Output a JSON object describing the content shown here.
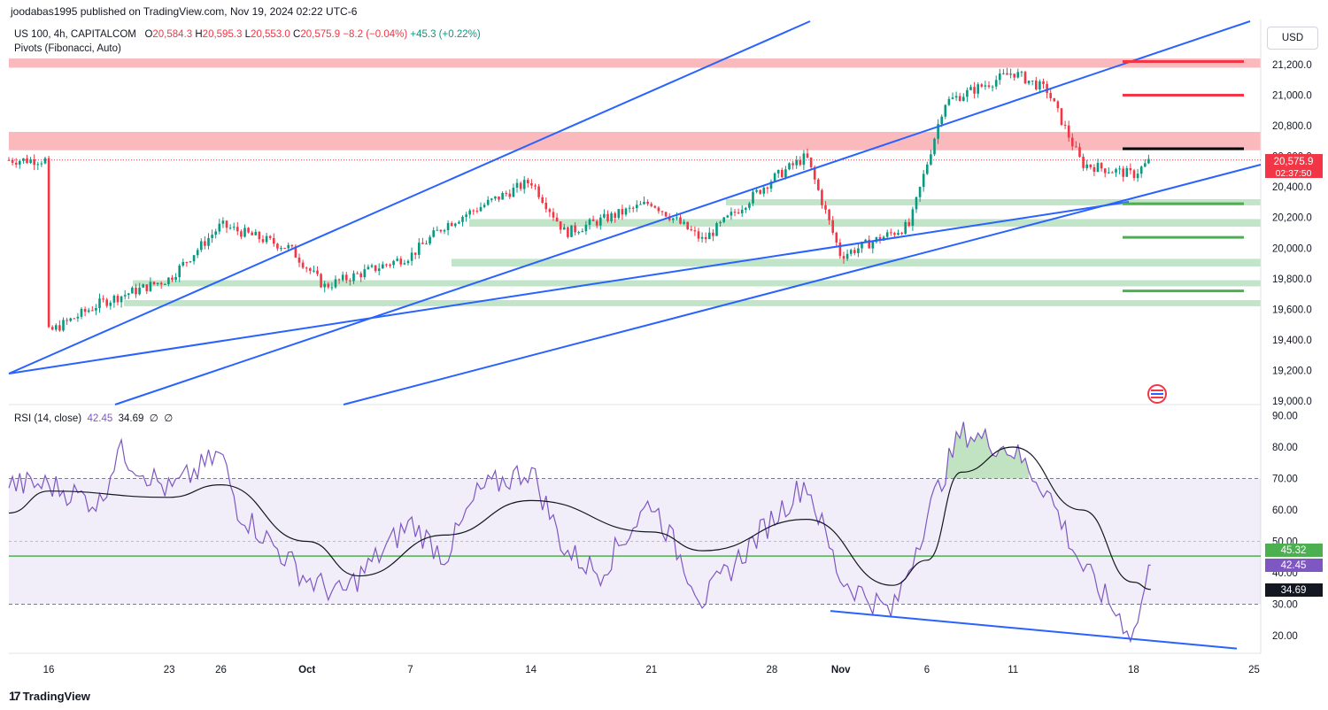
{
  "header": {
    "published": "joodabas1995 published on TradingView.com, Nov 19, 2024 02:22 UTC-6",
    "symbol": "US 100, 4h, CAPITALCOM",
    "open_label": "O",
    "open": "20,584.3",
    "high_label": "H",
    "high": "20,595.3",
    "low_label": "L",
    "low": "20,553.0",
    "close_label": "C",
    "close": "20,575.9",
    "change": "−8.2 (−0.04%)",
    "change2": "+45.3 (+0.22%)",
    "indicator": "Pivots (Fibonacci, Auto)",
    "currency": "USD"
  },
  "rsi_legend": {
    "name": "RSI (14, close)",
    "rsi": "42.45",
    "ma": "34.69",
    "e1": "∅",
    "e2": "∅"
  },
  "badges": {
    "price": "20,575.9",
    "countdown": "02:37:50",
    "rsi_green": "45.32",
    "rsi_purple": "42.45",
    "rsi_black": "34.69"
  },
  "footer": {
    "brand": "TradingView",
    "brand_mark": "17"
  },
  "colors": {
    "up": "#089981",
    "down": "#f23645",
    "trend": "#2962ff",
    "rsi": "#7e57c2",
    "resistance": "#f7a7ad",
    "support": "#b7dfbe"
  },
  "chart_data": [
    {
      "type": "candlestick",
      "title": "US 100, 4h, CAPITALCOM",
      "ylim": [
        19000,
        21400
      ],
      "y_ticks": [
        "19,000.0",
        "19,200.0",
        "19,400.0",
        "19,600.0",
        "19,800.0",
        "20,000.0",
        "20,200.0",
        "20,400.0",
        "20,600.0",
        "20,800.0",
        "21,000.0",
        "21,200.0"
      ],
      "x_ticks": [
        "16",
        "23",
        "26",
        "Oct",
        "7",
        "14",
        "21",
        "28",
        "Nov",
        "6",
        "11",
        "18",
        "25"
      ],
      "last_price": 20575.9,
      "key_points": [
        {
          "date": "Sep 16",
          "close": 19450
        },
        {
          "date": "Sep 19",
          "close": 19640
        },
        {
          "date": "Sep 23",
          "close": 19800
        },
        {
          "date": "Sep 26",
          "close": 20150
        },
        {
          "date": "Sep 30",
          "close": 20000
        },
        {
          "date": "Oct 2",
          "close": 19750
        },
        {
          "date": "Oct 7",
          "close": 19950
        },
        {
          "date": "Oct 9",
          "close": 20150
        },
        {
          "date": "Oct 14",
          "close": 20440
        },
        {
          "date": "Oct 16",
          "close": 20100
        },
        {
          "date": "Oct 21",
          "close": 20300
        },
        {
          "date": "Oct 24",
          "close": 20050
        },
        {
          "date": "Oct 28",
          "close": 20450
        },
        {
          "date": "Oct 30",
          "close": 20600
        },
        {
          "date": "Nov 1",
          "close": 19950
        },
        {
          "date": "Nov 5",
          "close": 20150
        },
        {
          "date": "Nov 7",
          "close": 20950
        },
        {
          "date": "Nov 11",
          "close": 21150
        },
        {
          "date": "Nov 13",
          "close": 21030
        },
        {
          "date": "Nov 15",
          "close": 20550
        },
        {
          "date": "Nov 18",
          "close": 20480
        },
        {
          "date": "Nov 19",
          "close": 20575.9
        }
      ],
      "resistance_zones": [
        [
          21180,
          21240
        ],
        [
          20640,
          20760
        ]
      ],
      "support_zones": [
        [
          20280,
          20320
        ],
        [
          20140,
          20190
        ],
        [
          19880,
          19930
        ],
        [
          19750,
          19790
        ],
        [
          19620,
          19660
        ]
      ],
      "pivot_lines": [
        {
          "level": 21220,
          "color": "#f23645"
        },
        {
          "level": 21000,
          "color": "#f23645"
        },
        {
          "level": 20650,
          "color": "#000000"
        },
        {
          "level": 20290,
          "color": "#4caf50"
        },
        {
          "level": 20070,
          "color": "#4caf50"
        },
        {
          "level": 19720,
          "color": "#4caf50"
        }
      ]
    },
    {
      "type": "line",
      "title": "RSI (14, close)",
      "ylim": [
        15,
        92
      ],
      "y_ticks": [
        "20.00",
        "30.00",
        "40.00",
        "50.00",
        "60.00",
        "70.00",
        "80.00",
        "90.00"
      ],
      "bands": [
        30,
        70
      ],
      "mid": 50,
      "horizontal_line": 45.32,
      "rsi_last": 42.45,
      "ma_last": 34.69,
      "rsi_points": [
        {
          "date": "Sep 16",
          "value": 68
        },
        {
          "date": "Sep 19",
          "value": 62
        },
        {
          "date": "Sep 20",
          "value": 79
        },
        {
          "date": "Sep 23",
          "value": 66
        },
        {
          "date": "Sep 26",
          "value": 78
        },
        {
          "date": "Sep 27",
          "value": 60
        },
        {
          "date": "Oct 1",
          "value": 38
        },
        {
          "date": "Oct 3",
          "value": 33
        },
        {
          "date": "Oct 7",
          "value": 56
        },
        {
          "date": "Oct 9",
          "value": 45
        },
        {
          "date": "Oct 11",
          "value": 66
        },
        {
          "date": "Oct 14",
          "value": 73
        },
        {
          "date": "Oct 16",
          "value": 47
        },
        {
          "date": "Oct 18",
          "value": 40
        },
        {
          "date": "Oct 21",
          "value": 63
        },
        {
          "date": "Oct 24",
          "value": 31
        },
        {
          "date": "Oct 28",
          "value": 57
        },
        {
          "date": "Oct 30",
          "value": 69
        },
        {
          "date": "Nov 1",
          "value": 38
        },
        {
          "date": "Nov 4",
          "value": 27
        },
        {
          "date": "Nov 6",
          "value": 58
        },
        {
          "date": "Nov 8",
          "value": 85
        },
        {
          "date": "Nov 11",
          "value": 79
        },
        {
          "date": "Nov 13",
          "value": 66
        },
        {
          "date": "Nov 15",
          "value": 42
        },
        {
          "date": "Nov 18",
          "value": 20
        },
        {
          "date": "Nov 19",
          "value": 42.45
        }
      ],
      "ma_points": [
        {
          "date": "Sep 16",
          "value": 66
        },
        {
          "date": "Sep 23",
          "value": 64
        },
        {
          "date": "Sep 26",
          "value": 68
        },
        {
          "date": "Oct 1",
          "value": 50
        },
        {
          "date": "Oct 4",
          "value": 39
        },
        {
          "date": "Oct 9",
          "value": 52
        },
        {
          "date": "Oct 14",
          "value": 63
        },
        {
          "date": "Oct 21",
          "value": 53
        },
        {
          "date": "Oct 24",
          "value": 47
        },
        {
          "date": "Oct 30",
          "value": 57
        },
        {
          "date": "Nov 4",
          "value": 36
        },
        {
          "date": "Nov 6",
          "value": 44
        },
        {
          "date": "Nov 8",
          "value": 72
        },
        {
          "date": "Nov 11",
          "value": 80
        },
        {
          "date": "Nov 15",
          "value": 60
        },
        {
          "date": "Nov 18",
          "value": 37
        },
        {
          "date": "Nov 19",
          "value": 34.69
        }
      ],
      "divergence_line": [
        {
          "date": "Nov 3",
          "value": 27
        },
        {
          "date": "Nov 24",
          "value": 17
        }
      ]
    }
  ]
}
